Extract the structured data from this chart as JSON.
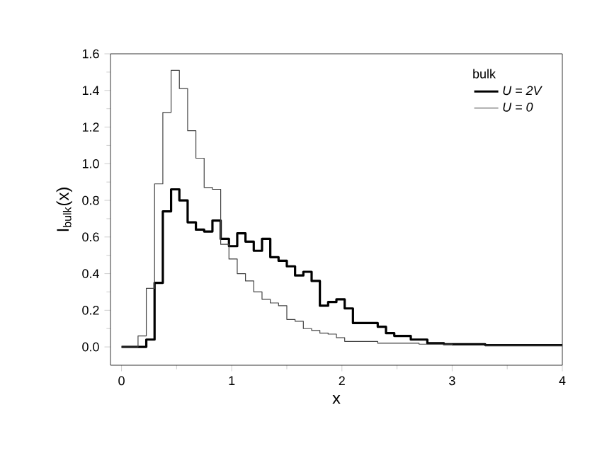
{
  "chart_data": {
    "type": "step",
    "xlabel": "x",
    "ylabel": "I$_{bulk}$(x)",
    "legend_title": "bulk",
    "legend": "top right",
    "xlim": [
      -0.1,
      4
    ],
    "ylim": [
      -0.1,
      1.6
    ],
    "xticks": [
      0,
      1,
      2,
      3,
      4
    ],
    "yticks": [
      {
        "value": 0,
        "label": "0.0"
      },
      {
        "value": 0.2,
        "label": "0.2"
      },
      {
        "value": 0.4,
        "label": "0.4"
      },
      {
        "value": 0.6,
        "label": "0.6"
      },
      {
        "value": 0.8,
        "label": "0.8"
      },
      {
        "value": 1.0,
        "label": "1.0"
      },
      {
        "value": 1.2,
        "label": "1.2"
      },
      {
        "value": 1.4,
        "label": "1.4"
      },
      {
        "value": 1.6,
        "label": "1.6"
      }
    ],
    "series": [
      {
        "name": "U = 2V",
        "color": "#000000",
        "line_style": "solid",
        "x": [
          0,
          0.225,
          0.3,
          0.375,
          0.45,
          0.525,
          0.6,
          0.675,
          0.75,
          0.825,
          0.9,
          0.975,
          1.05,
          1.125,
          1.2,
          1.275,
          1.35,
          1.425,
          1.5,
          1.575,
          1.65,
          1.725,
          1.8,
          1.875,
          1.95,
          2.025,
          2.1,
          2.325,
          2.4,
          2.475,
          2.625,
          2.775,
          2.925,
          3.3,
          4.0
        ],
        "values": [
          0,
          0.04,
          0.35,
          0.74,
          0.86,
          0.8,
          0.68,
          0.64,
          0.63,
          0.69,
          0.59,
          0.55,
          0.62,
          0.575,
          0.525,
          0.59,
          0.49,
          0.47,
          0.44,
          0.39,
          0.41,
          0.36,
          0.225,
          0.245,
          0.26,
          0.21,
          0.13,
          0.11,
          0.075,
          0.06,
          0.04,
          0.02,
          0.015,
          0.01,
          0.01
        ]
      },
      {
        "name": "U = 0",
        "color": "#444444",
        "line_style": "solid",
        "x": [
          0,
          0.15,
          0.225,
          0.3,
          0.375,
          0.45,
          0.525,
          0.6,
          0.675,
          0.75,
          0.825,
          0.9,
          0.975,
          1.05,
          1.125,
          1.2,
          1.275,
          1.35,
          1.425,
          1.5,
          1.575,
          1.65,
          1.725,
          1.8,
          1.875,
          1.95,
          2.025,
          2.325,
          2.7,
          3.0,
          4.0
        ],
        "values": [
          0,
          0.06,
          0.32,
          0.89,
          1.28,
          1.51,
          1.41,
          1.18,
          1.03,
          0.87,
          0.86,
          0.56,
          0.48,
          0.4,
          0.36,
          0.3,
          0.26,
          0.24,
          0.225,
          0.15,
          0.14,
          0.1,
          0.09,
          0.075,
          0.07,
          0.05,
          0.03,
          0.02,
          0.015,
          0.01,
          0.01
        ]
      }
    ]
  }
}
